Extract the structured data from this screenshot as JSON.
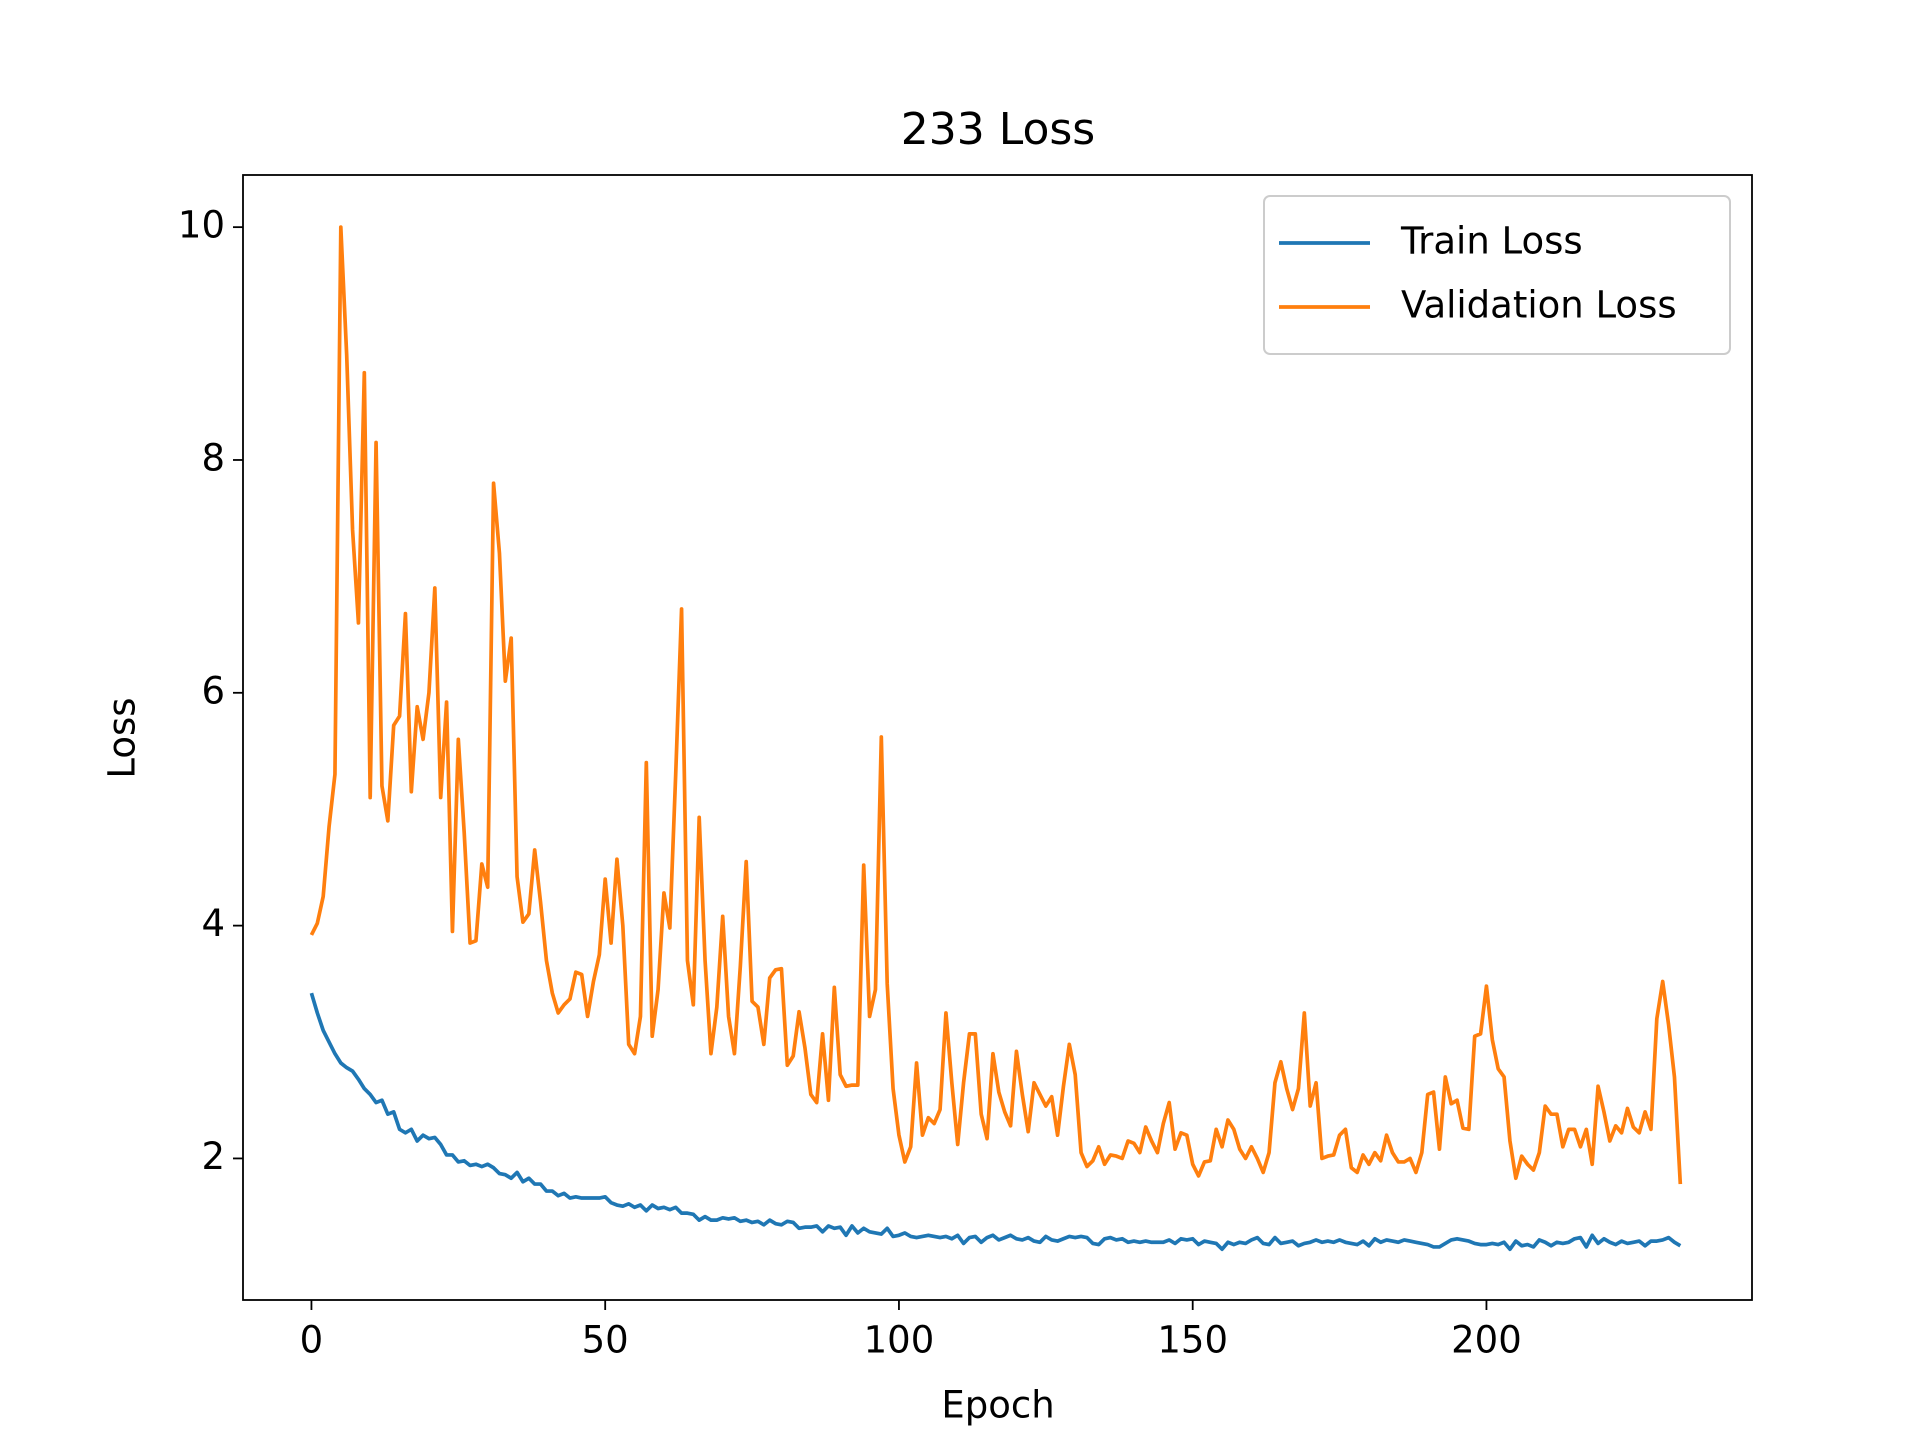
{
  "chart_data": {
    "type": "line",
    "title": "233 Loss",
    "x_label": "Epoch",
    "y_label": "Loss",
    "xlim": [
      -11.65,
      245.2
    ],
    "ylim": [
      0.784,
      10.448
    ],
    "xticks": [
      0,
      50,
      100,
      150,
      200
    ],
    "yticks": [
      2,
      4,
      6,
      8,
      10
    ],
    "legend": "upper right",
    "x": [
      0,
      1,
      2,
      3,
      4,
      5,
      6,
      7,
      8,
      9,
      10,
      11,
      12,
      13,
      14,
      15,
      16,
      17,
      18,
      19,
      20,
      21,
      22,
      23,
      24,
      25,
      26,
      27,
      28,
      29,
      30,
      31,
      32,
      33,
      34,
      35,
      36,
      37,
      38,
      39,
      40,
      41,
      42,
      43,
      44,
      45,
      46,
      47,
      48,
      49,
      50,
      51,
      52,
      53,
      54,
      55,
      56,
      57,
      58,
      59,
      60,
      61,
      62,
      63,
      64,
      65,
      66,
      67,
      68,
      69,
      70,
      71,
      72,
      73,
      74,
      75,
      76,
      77,
      78,
      79,
      80,
      81,
      82,
      83,
      84,
      85,
      86,
      87,
      88,
      89,
      90,
      91,
      92,
      93,
      94,
      95,
      96,
      97,
      98,
      99,
      100,
      101,
      102,
      103,
      104,
      105,
      106,
      107,
      108,
      109,
      110,
      111,
      112,
      113,
      114,
      115,
      116,
      117,
      118,
      119,
      120,
      121,
      122,
      123,
      124,
      125,
      126,
      127,
      128,
      129,
      130,
      131,
      132,
      133,
      134,
      135,
      136,
      137,
      138,
      139,
      140,
      141,
      142,
      143,
      144,
      145,
      146,
      147,
      148,
      149,
      150,
      151,
      152,
      153,
      154,
      155,
      156,
      157,
      158,
      159,
      160,
      161,
      162,
      163,
      164,
      165,
      166,
      167,
      168,
      169,
      170,
      171,
      172,
      173,
      174,
      175,
      176,
      177,
      178,
      179,
      180,
      181,
      182,
      183,
      184,
      185,
      186,
      187,
      188,
      189,
      190,
      191,
      192,
      193,
      194,
      195,
      196,
      197,
      198,
      199,
      200,
      201,
      202,
      203,
      204,
      205,
      206,
      207,
      208,
      209,
      210,
      211,
      212,
      213,
      214,
      215,
      216,
      217,
      218,
      219,
      220,
      221,
      222,
      223,
      224,
      225,
      226,
      227,
      228,
      229,
      230,
      231,
      232,
      233
    ],
    "series": [
      {
        "name": "Train Loss",
        "color": "#1f77b4",
        "values": [
          3.42,
          3.25,
          3.1,
          3.0,
          2.9,
          2.82,
          2.78,
          2.75,
          2.68,
          2.6,
          2.55,
          2.48,
          2.5,
          2.38,
          2.4,
          2.25,
          2.22,
          2.25,
          2.15,
          2.2,
          2.17,
          2.18,
          2.12,
          2.03,
          2.03,
          1.97,
          1.98,
          1.94,
          1.95,
          1.93,
          1.95,
          1.92,
          1.87,
          1.86,
          1.83,
          1.88,
          1.8,
          1.83,
          1.78,
          1.78,
          1.72,
          1.72,
          1.68,
          1.7,
          1.66,
          1.67,
          1.66,
          1.66,
          1.66,
          1.66,
          1.67,
          1.62,
          1.6,
          1.59,
          1.61,
          1.58,
          1.6,
          1.55,
          1.6,
          1.57,
          1.58,
          1.56,
          1.58,
          1.53,
          1.53,
          1.52,
          1.47,
          1.5,
          1.47,
          1.47,
          1.49,
          1.48,
          1.49,
          1.46,
          1.47,
          1.45,
          1.46,
          1.43,
          1.47,
          1.44,
          1.43,
          1.46,
          1.45,
          1.4,
          1.41,
          1.41,
          1.42,
          1.37,
          1.42,
          1.4,
          1.41,
          1.34,
          1.42,
          1.36,
          1.4,
          1.37,
          1.36,
          1.35,
          1.4,
          1.33,
          1.34,
          1.36,
          1.33,
          1.32,
          1.33,
          1.34,
          1.33,
          1.32,
          1.33,
          1.31,
          1.34,
          1.27,
          1.32,
          1.33,
          1.28,
          1.32,
          1.34,
          1.3,
          1.32,
          1.34,
          1.31,
          1.3,
          1.32,
          1.29,
          1.28,
          1.33,
          1.3,
          1.29,
          1.31,
          1.33,
          1.32,
          1.33,
          1.32,
          1.27,
          1.26,
          1.31,
          1.32,
          1.3,
          1.31,
          1.28,
          1.29,
          1.28,
          1.29,
          1.28,
          1.28,
          1.28,
          1.3,
          1.27,
          1.31,
          1.3,
          1.31,
          1.26,
          1.29,
          1.28,
          1.27,
          1.22,
          1.28,
          1.26,
          1.28,
          1.27,
          1.3,
          1.32,
          1.27,
          1.26,
          1.32,
          1.27,
          1.28,
          1.29,
          1.25,
          1.27,
          1.28,
          1.3,
          1.28,
          1.29,
          1.28,
          1.3,
          1.28,
          1.27,
          1.26,
          1.29,
          1.25,
          1.31,
          1.28,
          1.3,
          1.29,
          1.28,
          1.3,
          1.29,
          1.28,
          1.27,
          1.26,
          1.24,
          1.24,
          1.27,
          1.3,
          1.31,
          1.3,
          1.29,
          1.27,
          1.26,
          1.26,
          1.27,
          1.26,
          1.28,
          1.22,
          1.29,
          1.25,
          1.26,
          1.24,
          1.3,
          1.28,
          1.25,
          1.28,
          1.27,
          1.28,
          1.31,
          1.32,
          1.24,
          1.34,
          1.27,
          1.31,
          1.28,
          1.26,
          1.29,
          1.27,
          1.28,
          1.29,
          1.25,
          1.29,
          1.29,
          1.3,
          1.32,
          1.28,
          1.25
        ]
      },
      {
        "name": "Validation Loss",
        "color": "#ff7f0e",
        "values": [
          3.92,
          4.02,
          4.25,
          4.85,
          5.3,
          10.0,
          8.9,
          7.4,
          6.6,
          8.75,
          5.1,
          8.15,
          5.2,
          4.9,
          5.72,
          5.8,
          6.68,
          5.15,
          5.88,
          5.6,
          6.0,
          6.9,
          5.1,
          5.92,
          3.95,
          5.6,
          4.8,
          3.85,
          3.87,
          4.53,
          4.33,
          7.8,
          7.2,
          6.1,
          6.47,
          4.42,
          4.03,
          4.1,
          4.65,
          4.2,
          3.7,
          3.42,
          3.25,
          3.32,
          3.37,
          3.6,
          3.58,
          3.22,
          3.52,
          3.75,
          4.4,
          3.85,
          4.57,
          4.0,
          2.98,
          2.9,
          3.22,
          5.4,
          3.05,
          3.45,
          4.28,
          3.98,
          5.3,
          6.72,
          3.7,
          3.32,
          4.93,
          3.7,
          2.9,
          3.3,
          4.08,
          3.22,
          2.9,
          3.65,
          4.55,
          3.35,
          3.3,
          2.98,
          3.55,
          3.62,
          3.63,
          2.8,
          2.88,
          3.26,
          2.95,
          2.55,
          2.48,
          3.07,
          2.5,
          3.47,
          2.72,
          2.62,
          2.63,
          2.63,
          4.52,
          3.22,
          3.45,
          5.62,
          3.5,
          2.6,
          2.2,
          1.97,
          2.1,
          2.82,
          2.2,
          2.35,
          2.3,
          2.42,
          3.25,
          2.65,
          2.12,
          2.65,
          3.07,
          3.07,
          2.38,
          2.17,
          2.9,
          2.57,
          2.4,
          2.28,
          2.92,
          2.55,
          2.23,
          2.65,
          2.55,
          2.45,
          2.53,
          2.2,
          2.62,
          2.98,
          2.72,
          2.05,
          1.93,
          1.98,
          2.1,
          1.95,
          2.03,
          2.02,
          2.0,
          2.15,
          2.13,
          2.05,
          2.27,
          2.15,
          2.05,
          2.3,
          2.48,
          2.08,
          2.22,
          2.2,
          1.95,
          1.85,
          1.97,
          1.98,
          2.25,
          2.1,
          2.33,
          2.25,
          2.08,
          2.0,
          2.1,
          2.0,
          1.88,
          2.05,
          2.65,
          2.83,
          2.6,
          2.42,
          2.6,
          3.25,
          2.45,
          2.65,
          2.0,
          2.02,
          2.03,
          2.2,
          2.25,
          1.92,
          1.88,
          2.03,
          1.95,
          2.05,
          1.98,
          2.2,
          2.05,
          1.97,
          1.97,
          2.0,
          1.88,
          2.05,
          2.55,
          2.57,
          2.08,
          2.7,
          2.47,
          2.5,
          2.26,
          2.25,
          3.05,
          3.07,
          3.48,
          3.02,
          2.77,
          2.7,
          2.15,
          1.83,
          2.02,
          1.95,
          1.9,
          2.05,
          2.45,
          2.38,
          2.38,
          2.1,
          2.25,
          2.25,
          2.1,
          2.25,
          1.95,
          2.62,
          2.4,
          2.15,
          2.28,
          2.22,
          2.43,
          2.27,
          2.22,
          2.4,
          2.25,
          3.2,
          3.52,
          3.15,
          2.7,
          1.78
        ]
      }
    ]
  }
}
